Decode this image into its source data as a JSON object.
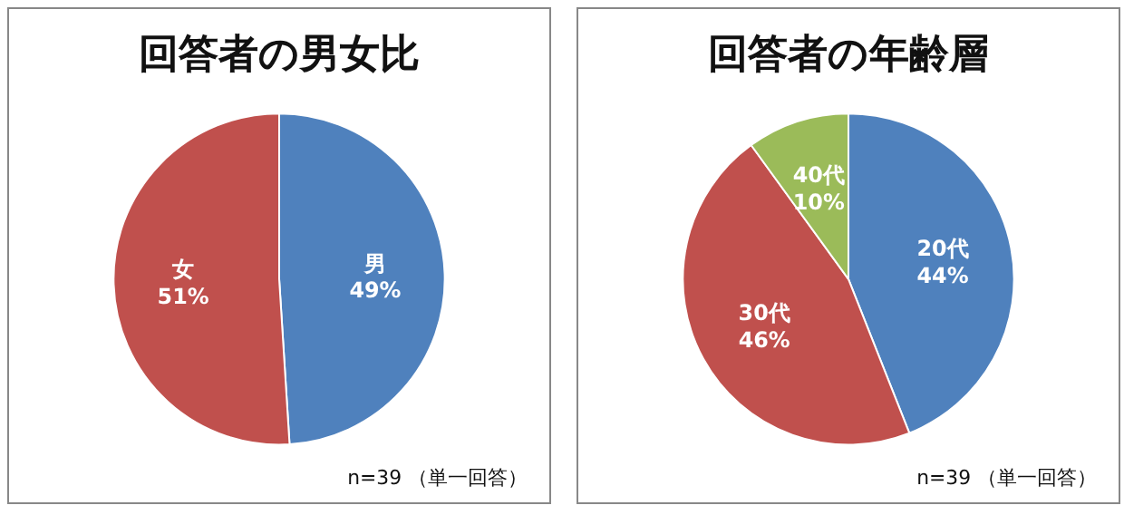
{
  "chart_data": [
    {
      "type": "pie",
      "title": "回答者の男女比",
      "categories": [
        "男",
        "女"
      ],
      "values": [
        49,
        51
      ],
      "colors": [
        "#4f81bd",
        "#c0504d"
      ],
      "value_labels": [
        "49%",
        "51%"
      ],
      "annotations": [
        "n=39 （単一回答）"
      ]
    },
    {
      "type": "pie",
      "title": "回答者の年齢層",
      "categories": [
        "20代",
        "30代",
        "40代"
      ],
      "values": [
        44,
        46,
        10
      ],
      "colors": [
        "#4f81bd",
        "#c0504d",
        "#9bbb59"
      ],
      "value_labels": [
        "44%",
        "46%",
        "10%"
      ],
      "annotations": [
        "n=39 （単一回答）"
      ]
    }
  ]
}
